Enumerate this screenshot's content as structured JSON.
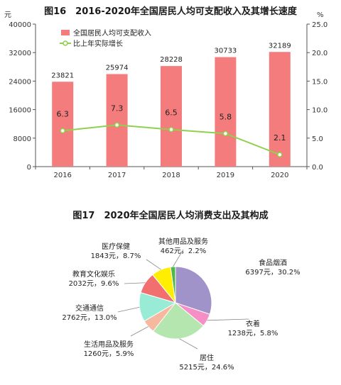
{
  "chart_data": [
    {
      "type": "bar",
      "title": "图16　2016-2020年全国居民人均可支配收入及其增长速度",
      "categories": [
        "2016",
        "2017",
        "2018",
        "2019",
        "2020"
      ],
      "y_unit_left": "元",
      "y_unit_right": "%",
      "ylim_left": [
        0,
        40000
      ],
      "ylim_right": [
        0,
        25
      ],
      "y_ticks_left": [
        "0",
        "8000",
        "16000",
        "24000",
        "32000",
        "40000"
      ],
      "y_ticks_right": [
        "0.0",
        "5.0",
        "10.0",
        "15.0",
        "20.0",
        "25.0"
      ],
      "grid": false,
      "legend": "top-left",
      "series": [
        {
          "name": "全国居民人均可支配收入",
          "kind": "bar",
          "axis": "left",
          "color": "#f47c7c",
          "values": [
            23821,
            25974,
            28228,
            30733,
            32189
          ]
        },
        {
          "name": "比上年实际增长",
          "kind": "line",
          "axis": "right",
          "color": "#8fd14f",
          "values": [
            6.3,
            7.3,
            6.5,
            5.8,
            2.1
          ]
        }
      ]
    },
    {
      "type": "pie",
      "title": "图17　2020年全国居民人均消费支出及其构成",
      "slices": [
        {
          "label": "食品烟酒",
          "value": 6397,
          "value_text": "6397元，30.2%",
          "percent": 30.2,
          "color": "#9f93c9"
        },
        {
          "label": "衣着",
          "value": 1238,
          "value_text": "1238元，5.8%",
          "percent": 5.8,
          "color": "#f58fc6"
        },
        {
          "label": "居住",
          "value": 5215,
          "value_text": "5215元，24.6%",
          "percent": 24.6,
          "color": "#b5e6b0"
        },
        {
          "label": "生活用品及服务",
          "value": 1260,
          "value_text": "1260元，5.9%",
          "percent": 5.9,
          "color": "#f7b8a0"
        },
        {
          "label": "交通通信",
          "value": 2762,
          "value_text": "2762元，13.0%",
          "percent": 13.0,
          "color": "#98ecd6"
        },
        {
          "label": "教育文化娱乐",
          "value": 2032,
          "value_text": "2032元，9.6%",
          "percent": 9.6,
          "color": "#f26f6f"
        },
        {
          "label": "医疗保健",
          "value": 1843,
          "value_text": "1843元，8.7%",
          "percent": 8.7,
          "color": "#ffee00"
        },
        {
          "label": "其他用品及服务",
          "value": 462,
          "value_text": "462元，2.2%",
          "percent": 2.2,
          "color": "#4db848"
        }
      ]
    }
  ]
}
